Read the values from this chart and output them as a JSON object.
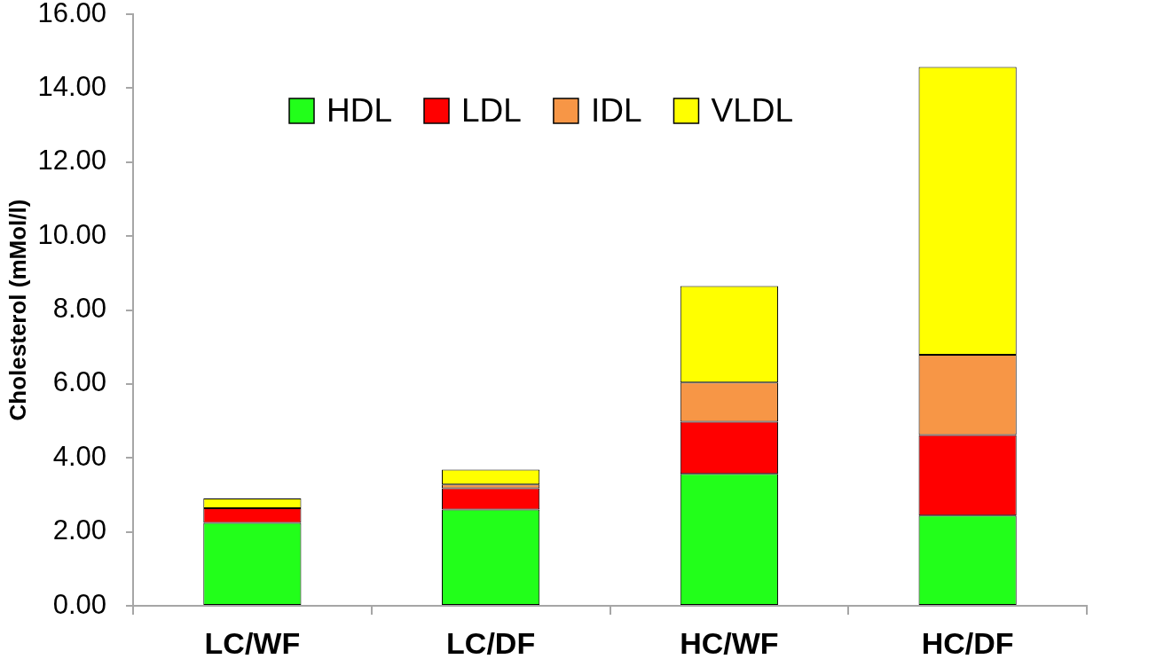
{
  "chart_data": {
    "type": "bar",
    "stacked": true,
    "ylabel": "Cholesterol (mMol/l)",
    "categories": [
      "LC/WF",
      "LC/DF",
      "HC/WF",
      "HC/DF"
    ],
    "series": [
      {
        "name": "HDL",
        "color": "#22ff1a",
        "values": [
          2.24,
          2.6,
          3.57,
          2.44
        ]
      },
      {
        "name": "LDL",
        "color": "#ff0000",
        "values": [
          0.4,
          0.58,
          1.41,
          2.18
        ]
      },
      {
        "name": "IDL",
        "color": "#f79646",
        "values": [
          null,
          0.1,
          1.06,
          2.17
        ]
      },
      {
        "name": "VLDL",
        "color": "#ffff00",
        "values": [
          0.26,
          0.4,
          2.61,
          7.78
        ]
      }
    ],
    "ylim": [
      0,
      16
    ],
    "yticks": [
      {
        "value": 0,
        "label": "0.00"
      },
      {
        "value": 2,
        "label": "2.00"
      },
      {
        "value": 4,
        "label": "4.00"
      },
      {
        "value": 6,
        "label": "6.00"
      },
      {
        "value": 8,
        "label": "8.00"
      },
      {
        "value": 10,
        "label": "10.00"
      },
      {
        "value": 12,
        "label": "12.00"
      },
      {
        "value": 14,
        "label": "14.00"
      },
      {
        "value": 16,
        "label": "16.00"
      }
    ],
    "grid": false,
    "legend": "top left"
  }
}
